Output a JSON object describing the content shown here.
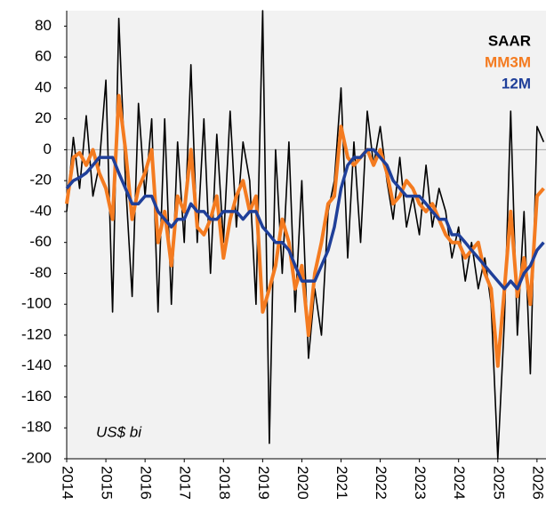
{
  "chart_data": {
    "type": "line",
    "annotation": "US$ bi",
    "x": [
      2014,
      2014.17,
      2014.33,
      2014.5,
      2014.67,
      2014.83,
      2015,
      2015.17,
      2015.33,
      2015.5,
      2015.67,
      2015.83,
      2016,
      2016.17,
      2016.33,
      2016.5,
      2016.67,
      2016.83,
      2017,
      2017.17,
      2017.33,
      2017.5,
      2017.67,
      2017.83,
      2018,
      2018.17,
      2018.33,
      2018.5,
      2018.67,
      2018.83,
      2019,
      2019.17,
      2019.33,
      2019.5,
      2019.67,
      2019.83,
      2020,
      2020.17,
      2020.33,
      2020.5,
      2020.67,
      2020.83,
      2021,
      2021.17,
      2021.33,
      2021.5,
      2021.67,
      2021.83,
      2022,
      2022.17,
      2022.33,
      2022.5,
      2022.67,
      2022.83,
      2023,
      2023.17,
      2023.33,
      2023.5,
      2023.67,
      2023.83,
      2024,
      2024.17,
      2024.33,
      2024.5,
      2024.67,
      2024.83,
      2025,
      2025.17,
      2025.33,
      2025.5,
      2025.67,
      2025.83,
      2026,
      2026.17
    ],
    "series": [
      {
        "name": "SAAR",
        "color": "#000000",
        "width": 1.6,
        "values": [
          -40,
          8,
          -25,
          22,
          -30,
          -10,
          45,
          -105,
          85,
          -20,
          -95,
          30,
          -30,
          20,
          -105,
          20,
          -100,
          5,
          -60,
          55,
          -60,
          20,
          -80,
          10,
          -60,
          25,
          -50,
          5,
          -20,
          -100,
          90,
          -190,
          0,
          -80,
          5,
          -105,
          -20,
          -135,
          -90,
          -120,
          -40,
          -20,
          40,
          -70,
          5,
          -60,
          25,
          -10,
          15,
          -20,
          -45,
          -5,
          -50,
          -30,
          -55,
          -10,
          -50,
          -25,
          -40,
          -70,
          -50,
          -85,
          -60,
          -90,
          -70,
          -100,
          -200,
          -110,
          25,
          -120,
          -40,
          -145,
          15,
          5
        ]
      },
      {
        "name": "MM3M",
        "color": "#f47b20",
        "width": 4,
        "values": [
          -35,
          -5,
          -2,
          -10,
          0,
          -15,
          -25,
          -45,
          35,
          0,
          -45,
          -25,
          -15,
          0,
          -60,
          -40,
          -75,
          -30,
          -40,
          0,
          -50,
          -55,
          -45,
          -30,
          -70,
          -45,
          -30,
          -20,
          -40,
          -30,
          -105,
          -90,
          -75,
          -45,
          -60,
          -90,
          -75,
          -120,
          -80,
          -60,
          -35,
          -30,
          15,
          -5,
          -10,
          -5,
          0,
          -10,
          0,
          -15,
          -35,
          -30,
          -20,
          -25,
          -35,
          -40,
          -35,
          -45,
          -55,
          -60,
          -60,
          -70,
          -65,
          -60,
          -80,
          -90,
          -140,
          -90,
          -40,
          -95,
          -70,
          -100,
          -30,
          -25
        ]
      },
      {
        "name": "12M",
        "color": "#1f3f99",
        "width": 3.5,
        "values": [
          -25,
          -20,
          -18,
          -15,
          -10,
          -5,
          -5,
          -5,
          -15,
          -25,
          -35,
          -35,
          -30,
          -30,
          -40,
          -45,
          -50,
          -45,
          -45,
          -35,
          -40,
          -40,
          -45,
          -45,
          -40,
          -40,
          -40,
          -45,
          -40,
          -40,
          -50,
          -55,
          -60,
          -60,
          -65,
          -75,
          -85,
          -85,
          -85,
          -75,
          -65,
          -50,
          -25,
          -10,
          -5,
          -5,
          0,
          0,
          -5,
          -10,
          -20,
          -25,
          -30,
          -30,
          -30,
          -35,
          -40,
          -45,
          -45,
          -55,
          -55,
          -60,
          -65,
          -70,
          -75,
          -80,
          -85,
          -90,
          -85,
          -90,
          -80,
          -75,
          -65,
          -60
        ]
      }
    ],
    "xlim": [
      2014,
      2026.23
    ],
    "xticks": [
      2014,
      2015,
      2016,
      2017,
      2018,
      2019,
      2020,
      2021,
      2022,
      2023,
      2024,
      2025,
      2026
    ],
    "ylim": [
      -200,
      90
    ],
    "yticks": [
      80,
      60,
      40,
      20,
      0,
      -20,
      -40,
      -60,
      -80,
      -100,
      -120,
      -140,
      -160,
      -180,
      -200
    ]
  }
}
